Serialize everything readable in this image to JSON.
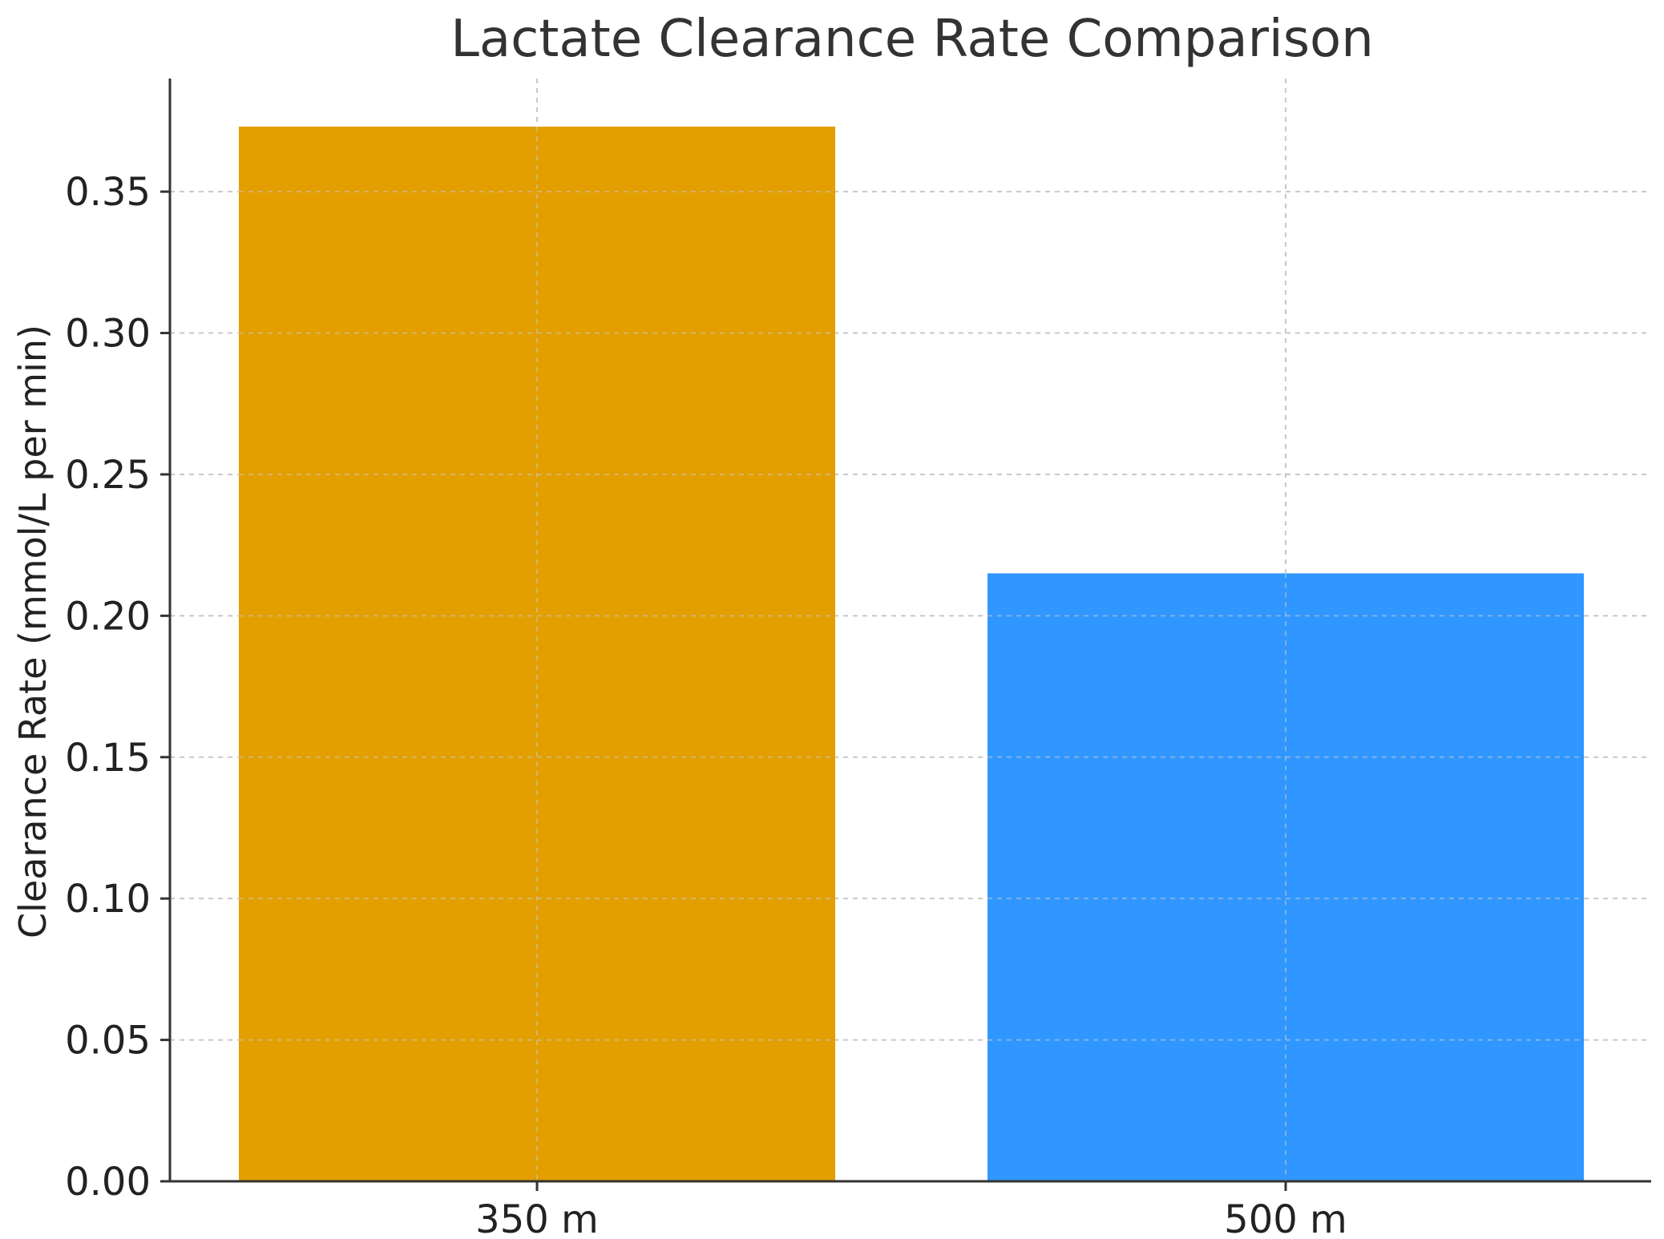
{
  "chart_data": {
    "type": "bar",
    "title": "Lactate Clearance Rate Comparison",
    "xlabel": "",
    "ylabel": "Clearance Rate (mmol/L per min)",
    "categories": [
      "350 m",
      "500 m"
    ],
    "values": [
      0.373,
      0.215
    ],
    "ylim": [
      0,
      0.39
    ],
    "yticks": [
      "0.00",
      "0.05",
      "0.10",
      "0.15",
      "0.20",
      "0.25",
      "0.30",
      "0.35"
    ],
    "grid": true,
    "colors": [
      "#E39E00",
      "#2F97FF"
    ],
    "axis_color": "#333333",
    "grid_color": "#C8C8C8"
  }
}
